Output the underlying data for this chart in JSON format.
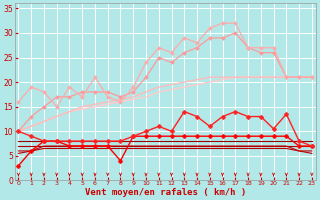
{
  "xlabel": "Vent moyen/en rafales ( km/h )",
  "background_color": "#b2e8e8",
  "grid_color": "#ffffff",
  "x_ticks": [
    0,
    1,
    2,
    3,
    4,
    5,
    6,
    7,
    8,
    9,
    10,
    11,
    12,
    13,
    14,
    15,
    16,
    17,
    18,
    19,
    20,
    21,
    22,
    23
  ],
  "y_ticks": [
    0,
    5,
    10,
    15,
    20,
    25,
    30,
    35
  ],
  "ylim": [
    0,
    36
  ],
  "xlim": [
    -0.3,
    23.3
  ],
  "series": [
    {
      "x": [
        0,
        1,
        2,
        3,
        4,
        5,
        6,
        7,
        8,
        9,
        10,
        11,
        12,
        13,
        14,
        15,
        16,
        17,
        18,
        19,
        20,
        21,
        22,
        23
      ],
      "y": [
        16,
        19,
        18,
        15,
        19,
        17,
        21,
        17,
        16,
        19,
        24,
        27,
        26,
        29,
        28,
        31,
        32,
        32,
        27,
        27,
        27,
        21,
        21,
        21
      ],
      "color": "#ffaaaa",
      "lw": 0.9,
      "marker": "D",
      "ms": 2.0,
      "zorder": 5
    },
    {
      "x": [
        0,
        1,
        2,
        3,
        4,
        5,
        6,
        7,
        8,
        9,
        10,
        11,
        12,
        13,
        14,
        15,
        16,
        17,
        18,
        19,
        20,
        21,
        22,
        23
      ],
      "y": [
        10,
        11,
        12,
        13,
        14,
        15,
        15.5,
        16,
        16.5,
        17,
        18,
        19,
        19.5,
        20,
        20.5,
        21,
        21,
        21,
        21,
        21,
        21,
        21,
        21,
        21
      ],
      "color": "#ffbbbb",
      "lw": 1.0,
      "marker": null,
      "ms": 0,
      "zorder": 3
    },
    {
      "x": [
        0,
        1,
        2,
        3,
        4,
        5,
        6,
        7,
        8,
        9,
        10,
        11,
        12,
        13,
        14,
        15,
        16,
        17,
        18,
        19,
        20,
        21,
        22,
        23
      ],
      "y": [
        10,
        13,
        15,
        17,
        17,
        18,
        18,
        18,
        17,
        18,
        21,
        25,
        24,
        26,
        27,
        29,
        29,
        30,
        27,
        26,
        26,
        21,
        21,
        21
      ],
      "color": "#ff9999",
      "lw": 0.9,
      "marker": "D",
      "ms": 2.0,
      "zorder": 4
    },
    {
      "x": [
        0,
        1,
        2,
        3,
        4,
        5,
        6,
        7,
        8,
        9,
        10,
        11,
        12,
        13,
        14,
        15,
        16,
        17,
        18,
        19,
        20,
        21,
        22,
        23
      ],
      "y": [
        10,
        11,
        12,
        13,
        14,
        14.5,
        15,
        15.5,
        16,
        16.5,
        17,
        18,
        18.5,
        19,
        19.5,
        20,
        20.5,
        21,
        21,
        21,
        21,
        21,
        21,
        21
      ],
      "color": "#ffcccc",
      "lw": 1.0,
      "marker": null,
      "ms": 0,
      "zorder": 2
    },
    {
      "x": [
        0,
        1,
        2,
        3,
        4,
        5,
        6,
        7,
        8,
        9,
        10,
        11,
        12,
        13,
        14,
        15,
        16,
        17,
        18,
        19,
        20,
        21,
        22,
        23
      ],
      "y": [
        10,
        9,
        8,
        8,
        8,
        8,
        8,
        8,
        8,
        9,
        10,
        11,
        10,
        14,
        13,
        11,
        13,
        14,
        13,
        13,
        10.5,
        13.5,
        8,
        7
      ],
      "color": "#ff2222",
      "lw": 1.0,
      "marker": "D",
      "ms": 2.5,
      "zorder": 7
    },
    {
      "x": [
        0,
        1,
        2,
        3,
        4,
        5,
        6,
        7,
        8,
        9,
        10,
        11,
        12,
        13,
        14,
        15,
        16,
        17,
        18,
        19,
        20,
        21,
        22,
        23
      ],
      "y": [
        8,
        8,
        8,
        8,
        8,
        8,
        8,
        8,
        8,
        8,
        8,
        8,
        8,
        8,
        8,
        8,
        8,
        8,
        8,
        8,
        8,
        8,
        8,
        8
      ],
      "color": "#990000",
      "lw": 0.8,
      "marker": null,
      "ms": 0,
      "zorder": 4
    },
    {
      "x": [
        0,
        1,
        2,
        3,
        4,
        5,
        6,
        7,
        8,
        9,
        10,
        11,
        12,
        13,
        14,
        15,
        16,
        17,
        18,
        19,
        20,
        21,
        22,
        23
      ],
      "y": [
        7,
        7,
        7,
        7,
        7,
        7,
        7,
        7,
        7,
        7,
        7,
        7,
        7,
        7,
        7,
        7,
        7,
        7,
        7,
        7,
        7,
        7,
        7,
        7
      ],
      "color": "#aa0000",
      "lw": 0.8,
      "marker": null,
      "ms": 0,
      "zorder": 4
    },
    {
      "x": [
        0,
        1,
        2,
        3,
        4,
        5,
        6,
        7,
        8,
        9,
        10,
        11,
        12,
        13,
        14,
        15,
        16,
        17,
        18,
        19,
        20,
        21,
        22,
        23
      ],
      "y": [
        3,
        6,
        8,
        8,
        7,
        7,
        7,
        7,
        4,
        9,
        9,
        9,
        9,
        9,
        9,
        9,
        9,
        9,
        9,
        9,
        9,
        9,
        7,
        7
      ],
      "color": "#ff0000",
      "lw": 1.0,
      "marker": "D",
      "ms": 2.5,
      "zorder": 6
    },
    {
      "x": [
        0,
        1,
        2,
        3,
        4,
        5,
        6,
        7,
        8,
        9,
        10,
        11,
        12,
        13,
        14,
        15,
        16,
        17,
        18,
        19,
        20,
        21,
        22,
        23
      ],
      "y": [
        6,
        6,
        7,
        7,
        7,
        7,
        7,
        7,
        7,
        7,
        7,
        7,
        7,
        7,
        7,
        7,
        7,
        7,
        7,
        7,
        7,
        7,
        6,
        6
      ],
      "color": "#cc0000",
      "lw": 0.8,
      "marker": null,
      "ms": 0,
      "zorder": 3
    },
    {
      "x": [
        0,
        1,
        2,
        3,
        4,
        5,
        6,
        7,
        8,
        9,
        10,
        11,
        12,
        13,
        14,
        15,
        16,
        17,
        18,
        19,
        20,
        21,
        22,
        23
      ],
      "y": [
        5.5,
        6,
        6.5,
        6.5,
        6.5,
        6.5,
        6.5,
        6.5,
        6.5,
        6.5,
        6.5,
        6.5,
        6.5,
        6.5,
        6.5,
        6.5,
        6.5,
        6.5,
        6.5,
        6.5,
        6.5,
        6.5,
        6,
        5.5
      ],
      "color": "#bb0000",
      "lw": 0.8,
      "marker": null,
      "ms": 0,
      "zorder": 3
    }
  ],
  "arrow_color": "#cc0000",
  "tick_label_color": "#cc0000",
  "xlabel_color": "#cc0000"
}
